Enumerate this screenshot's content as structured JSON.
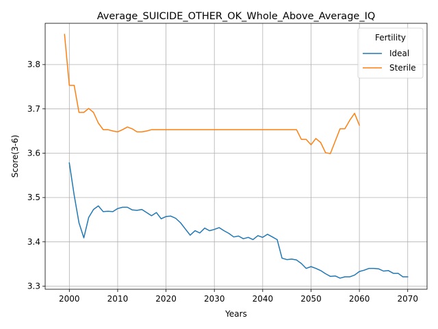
{
  "chart_data": {
    "type": "line",
    "title": "Average_SUICIDE_OTHER_OK_Whole_Above_Average_IQ",
    "xlabel": "Years",
    "ylabel": "Score(3-6)",
    "xlim": [
      1995,
      2074
    ],
    "ylim": [
      3.293,
      3.893
    ],
    "xticks": [
      2000,
      2010,
      2020,
      2030,
      2040,
      2050,
      2060,
      2070
    ],
    "yticks": [
      3.3,
      3.4,
      3.5,
      3.6,
      3.7,
      3.8
    ],
    "ytick_labels": [
      "3.3",
      "3.4",
      "3.5",
      "3.6",
      "3.7",
      "3.8"
    ],
    "grid": true,
    "legend": {
      "title": "Fertility",
      "placement": "top-right"
    },
    "series": [
      {
        "name": "Ideal",
        "color": "#1f77b4",
        "x": [
          2000,
          2001,
          2002,
          2003,
          2004,
          2005,
          2006,
          2007,
          2008,
          2009,
          2010,
          2011,
          2012,
          2013,
          2014,
          2015,
          2016,
          2017,
          2018,
          2019,
          2020,
          2021,
          2022,
          2023,
          2024,
          2025,
          2026,
          2027,
          2028,
          2029,
          2030,
          2031,
          2032,
          2033,
          2034,
          2035,
          2036,
          2037,
          2038,
          2039,
          2040,
          2041,
          2042,
          2043,
          2044,
          2045,
          2046,
          2047,
          2048,
          2049,
          2050,
          2051,
          2052,
          2053,
          2054,
          2055,
          2056,
          2057,
          2058,
          2059,
          2060,
          2061,
          2062,
          2063,
          2064,
          2065,
          2066,
          2067,
          2068,
          2069,
          2070
        ],
        "y": [
          3.578,
          3.505,
          3.443,
          3.409,
          3.455,
          3.473,
          3.481,
          3.468,
          3.469,
          3.468,
          3.475,
          3.478,
          3.478,
          3.472,
          3.471,
          3.473,
          3.466,
          3.459,
          3.466,
          3.452,
          3.457,
          3.458,
          3.453,
          3.443,
          3.429,
          3.415,
          3.425,
          3.42,
          3.431,
          3.425,
          3.428,
          3.432,
          3.425,
          3.419,
          3.411,
          3.413,
          3.407,
          3.41,
          3.405,
          3.414,
          3.41,
          3.417,
          3.411,
          3.405,
          3.363,
          3.36,
          3.361,
          3.359,
          3.351,
          3.34,
          3.344,
          3.34,
          3.335,
          3.328,
          3.322,
          3.323,
          3.318,
          3.321,
          3.321,
          3.325,
          3.333,
          3.336,
          3.34,
          3.34,
          3.339,
          3.334,
          3.335,
          3.329,
          3.329,
          3.321,
          3.321
        ]
      },
      {
        "name": "Sterile",
        "color": "#ff7f0e",
        "x": [
          1999,
          2000,
          2001,
          2002,
          2003,
          2004,
          2005,
          2006,
          2007,
          2008,
          2009,
          2010,
          2011,
          2012,
          2013,
          2014,
          2015,
          2016,
          2017,
          2018,
          2019,
          2020,
          2021,
          2022,
          2023,
          2024,
          2025,
          2026,
          2027,
          2028,
          2029,
          2030,
          2031,
          2032,
          2033,
          2034,
          2035,
          2036,
          2037,
          2038,
          2039,
          2040,
          2041,
          2042,
          2043,
          2044,
          2045,
          2046,
          2047,
          2048,
          2049,
          2050,
          2051,
          2052,
          2053,
          2054,
          2055,
          2056,
          2057,
          2058,
          2059,
          2060
        ],
        "y": [
          3.868,
          3.753,
          3.753,
          3.692,
          3.692,
          3.701,
          3.692,
          3.668,
          3.653,
          3.653,
          3.65,
          3.648,
          3.653,
          3.659,
          3.655,
          3.648,
          3.648,
          3.65,
          3.653,
          3.653,
          3.653,
          3.653,
          3.653,
          3.653,
          3.653,
          3.653,
          3.653,
          3.653,
          3.653,
          3.653,
          3.653,
          3.653,
          3.653,
          3.653,
          3.653,
          3.653,
          3.653,
          3.653,
          3.653,
          3.653,
          3.653,
          3.653,
          3.653,
          3.653,
          3.653,
          3.653,
          3.653,
          3.653,
          3.653,
          3.631,
          3.631,
          3.619,
          3.633,
          3.624,
          3.601,
          3.599,
          3.627,
          3.655,
          3.655,
          3.674,
          3.69,
          3.663
        ]
      }
    ]
  }
}
